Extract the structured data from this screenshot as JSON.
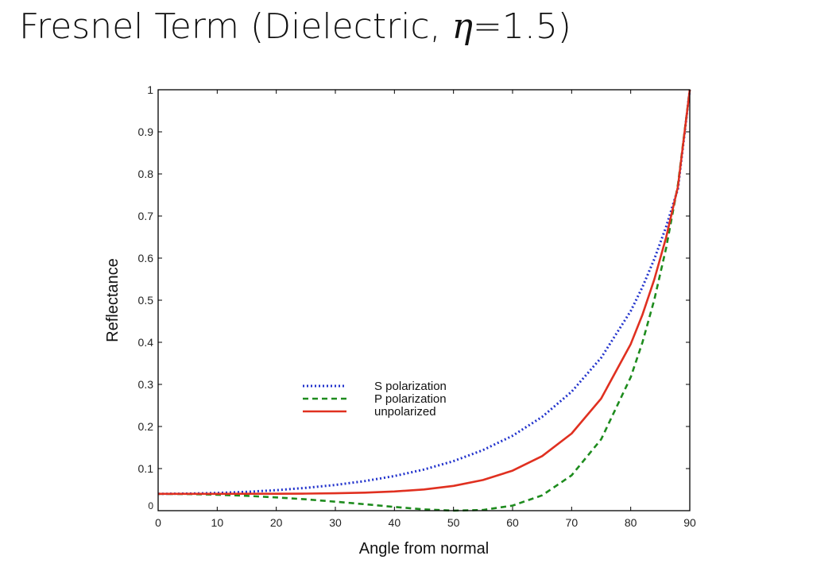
{
  "slide": {
    "title_prefix": "Fresnel Term (Dielectric, ",
    "title_symbol": "η",
    "title_suffix": "=1.5)"
  },
  "chart_data": {
    "type": "line",
    "title": "Fresnel Term (Dielectric, η=1.5)",
    "xlabel": "Angle from normal",
    "ylabel": "Reflectance",
    "xlim": [
      0,
      90
    ],
    "ylim": [
      0,
      1
    ],
    "xticks": [
      0,
      10,
      20,
      30,
      40,
      50,
      60,
      70,
      80,
      90
    ],
    "xtick_labels": [
      "0",
      "10",
      "20",
      "30",
      "40",
      "50",
      "60",
      "70",
      "80",
      "90"
    ],
    "yticks": [
      0,
      0.1,
      0.2,
      0.3,
      0.4,
      0.5,
      0.6,
      0.7,
      0.8,
      0.9,
      1
    ],
    "ytick_labels": [
      "0",
      "0.1",
      "0.2",
      "0.3",
      "0.4",
      "0.5",
      "0.6",
      "0.7",
      "0.8",
      "0.9",
      "1"
    ],
    "grid": false,
    "legend_position": "center-left",
    "x": [
      0,
      5,
      10,
      15,
      20,
      25,
      30,
      35,
      40,
      45,
      50,
      55,
      60,
      65,
      70,
      75,
      80,
      82,
      84,
      86,
      88,
      90
    ],
    "series": [
      {
        "name": "S polarization",
        "style": "dotted",
        "color": "#2233cc",
        "values": [
          0.04,
          0.0405,
          0.0421,
          0.0448,
          0.0487,
          0.0541,
          0.0612,
          0.0704,
          0.0823,
          0.0977,
          0.1177,
          0.1439,
          0.178,
          0.2229,
          0.2826,
          0.3634,
          0.4744,
          0.5316,
          0.5979,
          0.6749,
          0.7648,
          1.0
        ]
      },
      {
        "name": "P polarization",
        "style": "dashed",
        "color": "#1e8c1e",
        "values": [
          0.04,
          0.0395,
          0.0379,
          0.0353,
          0.0316,
          0.0269,
          0.0214,
          0.0152,
          0.0088,
          0.0031,
          0.0001,
          0.0017,
          0.012,
          0.0364,
          0.084,
          0.1696,
          0.3172,
          0.4002,
          0.5015,
          0.6245,
          0.7747,
          1.0
        ]
      },
      {
        "name": "unpolarized",
        "style": "solid",
        "color": "#e03020",
        "values": [
          0.04,
          0.04,
          0.04,
          0.0401,
          0.0402,
          0.0405,
          0.0413,
          0.0428,
          0.0456,
          0.0504,
          0.0589,
          0.0728,
          0.095,
          0.1297,
          0.1833,
          0.2665,
          0.3958,
          0.4659,
          0.5497,
          0.6497,
          0.7698,
          1.0
        ]
      }
    ]
  }
}
